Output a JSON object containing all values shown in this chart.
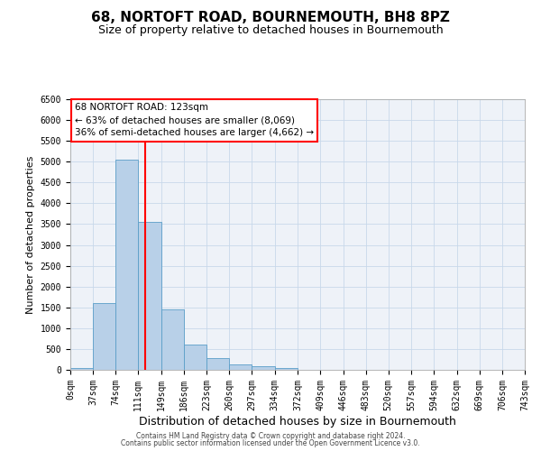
{
  "title": "68, NORTOFT ROAD, BOURNEMOUTH, BH8 8PZ",
  "subtitle": "Size of property relative to detached houses in Bournemouth",
  "xlabel": "Distribution of detached houses by size in Bournemouth",
  "ylabel": "Number of detached properties",
  "footer_line1": "Contains HM Land Registry data © Crown copyright and database right 2024.",
  "footer_line2": "Contains public sector information licensed under the Open Government Licence v3.0.",
  "annotation_line1": "68 NORTOFT ROAD: 123sqm",
  "annotation_line2": "← 63% of detached houses are smaller (8,069)",
  "annotation_line3": "36% of semi-detached houses are larger (4,662) →",
  "bar_color": "#b8d0e8",
  "bar_edge_color": "#5a9ec8",
  "red_line_x": 123,
  "bin_edges": [
    0,
    37,
    74,
    111,
    149,
    186,
    223,
    260,
    297,
    334,
    372,
    409,
    446,
    483,
    520,
    557,
    594,
    632,
    669,
    706,
    743
  ],
  "bin_counts": [
    50,
    1600,
    5050,
    3550,
    1450,
    600,
    280,
    120,
    80,
    50,
    0,
    0,
    0,
    0,
    0,
    0,
    0,
    0,
    0,
    0
  ],
  "ylim": [
    0,
    6500
  ],
  "yticks": [
    0,
    500,
    1000,
    1500,
    2000,
    2500,
    3000,
    3500,
    4000,
    4500,
    5000,
    5500,
    6000,
    6500
  ],
  "grid_color": "#c8d8ea",
  "bg_color": "#eef2f8",
  "title_fontsize": 11,
  "subtitle_fontsize": 9,
  "ylabel_fontsize": 8,
  "xlabel_fontsize": 9,
  "tick_fontsize": 7,
  "annotation_fontsize": 7.5,
  "footer_fontsize": 5.5
}
